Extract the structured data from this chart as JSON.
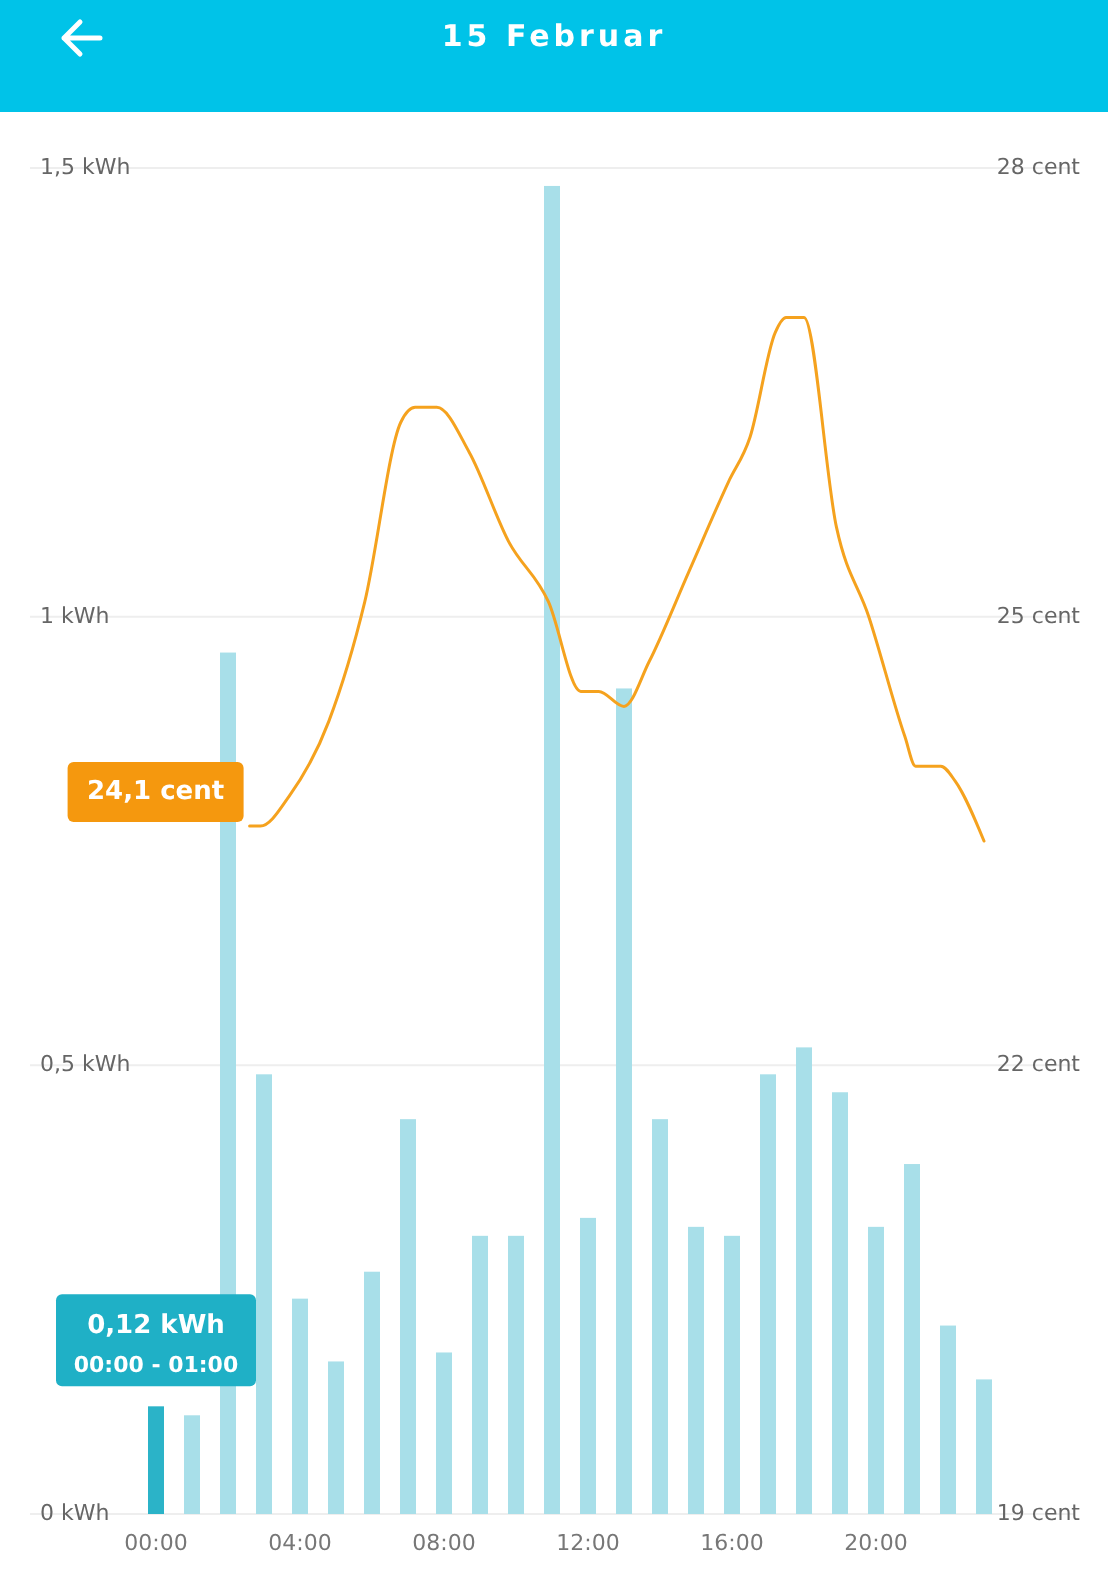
{
  "chart_data": {
    "type": "bar",
    "title": "15 Februar",
    "x": [
      0,
      1,
      2,
      3,
      4,
      5,
      6,
      7,
      8,
      9,
      10,
      11,
      12,
      13,
      14,
      15,
      16,
      17,
      18,
      19,
      20,
      21,
      22,
      23
    ],
    "xlim": [
      -3.5,
      25.5
    ],
    "xticks": [
      {
        "value": 0,
        "label": "00:00"
      },
      {
        "value": 4,
        "label": "04:00"
      },
      {
        "value": 8,
        "label": "08:00"
      },
      {
        "value": 12,
        "label": "12:00"
      },
      {
        "value": 16,
        "label": "16:00"
      },
      {
        "value": 20,
        "label": "20:00"
      }
    ],
    "ylim": [
      0,
      1.5
    ],
    "yticks": [
      {
        "value": 0,
        "label": "0 kWh"
      },
      {
        "value": 0.5,
        "label": "0,5 kWh"
      },
      {
        "value": 1,
        "label": "1 kWh"
      },
      {
        "value": 1.5,
        "label": "1,5 kWh"
      }
    ],
    "y2lim": [
      19,
      28
    ],
    "y2ticks": [
      {
        "value": 19,
        "label": "19 cent"
      },
      {
        "value": 22,
        "label": "22 cent"
      },
      {
        "value": 25,
        "label": "25 cent"
      },
      {
        "value": 28,
        "label": "28 cent"
      }
    ],
    "grid": "y",
    "series": [
      {
        "values": [
          0.12,
          0.11,
          0.96,
          0.49,
          0.24,
          0.17,
          0.27,
          0.44,
          0.18,
          0.31,
          0.31,
          1.48,
          0.33,
          0.92,
          0.44,
          0.32,
          0.31,
          0.49,
          0.52,
          0.47,
          0.32,
          0.39,
          0.21,
          0.15
        ],
        "colors": [
          "#2bb3c8",
          "#a8dfe9",
          "#a8dfe9",
          "#a8dfe9",
          "#a8dfe9",
          "#a8dfe9",
          "#a8dfe9",
          "#a8dfe9",
          "#a8dfe9",
          "#a8dfe9",
          "#a8dfe9",
          "#a8dfe9",
          "#a8dfe9",
          "#a8dfe9",
          "#a8dfe9",
          "#a8dfe9",
          "#a8dfe9",
          "#a8dfe9",
          "#a8dfe9",
          "#a8dfe9",
          "#a8dfe9",
          "#a8dfe9",
          "#a8dfe9",
          "#a8dfe9"
        ]
      },
      {
        "type": "line",
        "axis": "y2",
        "color": "#f5a21e",
        "x": [
          2.6,
          2.9,
          3.7,
          4.8,
          5.8,
          6.8,
          7.2,
          7.8,
          8.7,
          9.8,
          10.9,
          11.8,
          12.3,
          13,
          13.7,
          14.8,
          15.9,
          16.5,
          17.2,
          17.5,
          18,
          18.9,
          19.8,
          20.8,
          21.1,
          21.8,
          22.2,
          23
        ],
        "values": [
          23.6,
          23.6,
          23.8,
          24.3,
          25.1,
          26.3,
          26.4,
          26.4,
          26.1,
          25.5,
          25.1,
          24.5,
          24.5,
          24.4,
          24.7,
          25.3,
          25.9,
          26.2,
          26.9,
          27,
          27,
          25.6,
          25,
          24.2,
          24,
          24,
          23.9,
          23.5
        ]
      }
    ],
    "annotations": [
      {
        "text": "0,12 kWh",
        "x": 0,
        "y": 0.12
      },
      {
        "text": "00:00 - 01:00",
        "x": 0,
        "y": 0.12
      },
      "24,1 cent"
    ]
  }
}
